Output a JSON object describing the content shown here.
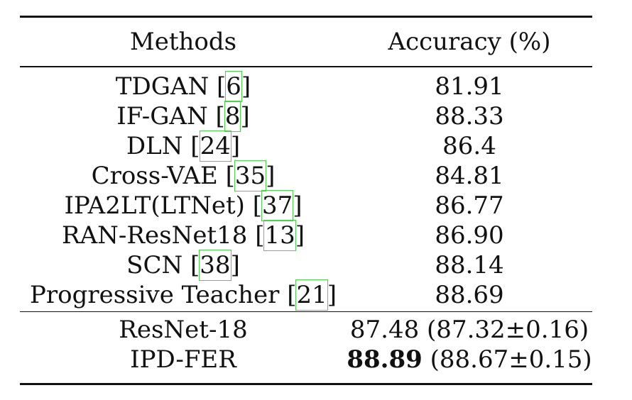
{
  "table": {
    "header": {
      "methods": "Methods",
      "accuracy": "Accuracy (%)"
    },
    "rows": [
      {
        "name": "TDGAN ",
        "cite_open": "[",
        "cite": "6",
        "cite_close": "]",
        "acc": "81.91"
      },
      {
        "name": "IF-GAN ",
        "cite_open": "[",
        "cite": "8",
        "cite_close": "]",
        "acc": "88.33"
      },
      {
        "name": "DLN ",
        "cite_open": "[",
        "cite": "24",
        "cite_close": "]",
        "acc": "86.4"
      },
      {
        "name": "Cross-VAE ",
        "cite_open": "[",
        "cite": "35",
        "cite_close": "]",
        "acc": "84.81"
      },
      {
        "name": "IPA2LT(LTNet) ",
        "cite_open": "[",
        "cite": "37",
        "cite_close": "]",
        "acc": "86.77"
      },
      {
        "name": "RAN-ResNet18 ",
        "cite_open": "[",
        "cite": "13",
        "cite_close": "]",
        "acc": "86.90"
      },
      {
        "name": "SCN ",
        "cite_open": "[",
        "cite": "38",
        "cite_close": "]",
        "acc": "88.14"
      },
      {
        "name": "Progressive Teacher ",
        "cite_open": "[",
        "cite": "21",
        "cite_close": "]",
        "acc": "88.69"
      }
    ],
    "final_rows": [
      {
        "name": "ResNet-18",
        "acc_main": "87.48",
        "acc_extra": " (87.32±0.16)"
      },
      {
        "name": "IPD-FER",
        "acc_main": "88.89",
        "acc_extra": " (88.67±0.15)"
      }
    ]
  }
}
